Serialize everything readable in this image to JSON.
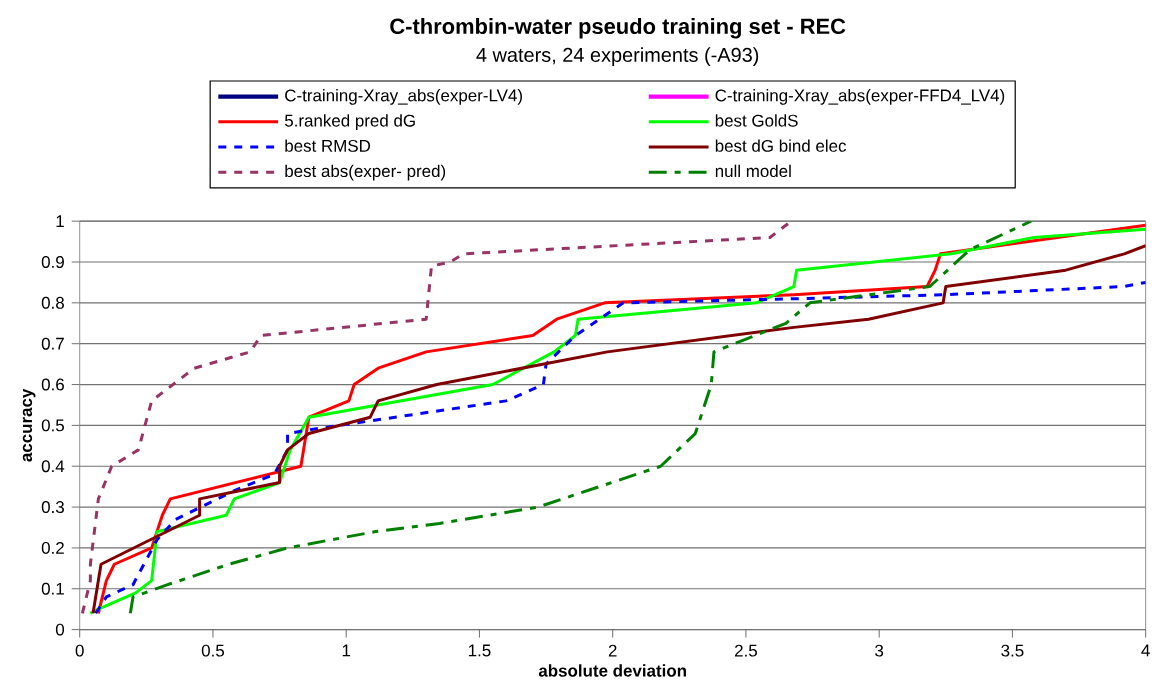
{
  "chart_data": {
    "type": "line",
    "title": "C-thrombin-water pseudo training set - REC",
    "subtitle": "4 waters, 24 experiments (-A93)",
    "xlabel": "absolute deviation",
    "ylabel": "accuracy",
    "xlim": [
      0,
      4
    ],
    "ylim": [
      0,
      1
    ],
    "xticks": [
      0,
      0.5,
      1,
      1.5,
      2,
      2.5,
      3,
      3.5,
      4
    ],
    "yticks": [
      0,
      0.1,
      0.2,
      0.3,
      0.4,
      0.5,
      0.6,
      0.7,
      0.8,
      0.9,
      1
    ],
    "grid": "y",
    "legend": "top",
    "line_style": "solid",
    "series": [
      {
        "name": "C-training-Xray_abs(exper-LV4)",
        "color": "#000080"
      },
      {
        "name": "C-training-Xray_abs(exper-FFD4_LV4)",
        "color": "#ff00ff"
      },
      {
        "name": "5.ranked pred dG",
        "color": "#ff0000",
        "x": [
          0.07,
          0.1,
          0.13,
          0.27,
          0.31,
          0.34,
          0.83,
          0.86,
          1.01,
          1.03,
          1.12,
          1.3,
          1.7,
          1.79,
          1.97,
          2.68,
          3.18,
          3.21,
          3.23,
          4
        ],
        "values": [
          0.04,
          0.12,
          0.16,
          0.2,
          0.28,
          0.32,
          0.4,
          0.52,
          0.56,
          0.6,
          0.64,
          0.68,
          0.72,
          0.76,
          0.8,
          0.82,
          0.84,
          0.88,
          0.92,
          0.99
        ]
      },
      {
        "name": "best GoldS",
        "color": "#00ff00",
        "x": [
          0.04,
          0.07,
          0.21,
          0.27,
          0.29,
          0.55,
          0.58,
          0.75,
          0.79,
          0.86,
          1.55,
          1.78,
          1.86,
          1.87,
          2.54,
          2.68,
          2.69,
          3.27,
          3.58,
          4
        ],
        "values": [
          0.04,
          0.05,
          0.09,
          0.12,
          0.24,
          0.28,
          0.32,
          0.36,
          0.44,
          0.52,
          0.6,
          0.68,
          0.72,
          0.76,
          0.8,
          0.84,
          0.88,
          0.92,
          0.96,
          0.98
        ]
      },
      {
        "name": "best RMSD",
        "color": "#0000ff",
        "line_style": "dotted",
        "x": [
          0.06,
          0.1,
          0.2,
          0.29,
          0.36,
          0.58,
          0.73,
          0.78,
          0.78,
          0.87,
          1.08,
          1.6,
          1.74,
          1.75,
          1.86,
          2.04,
          2.68,
          3.25,
          3.92,
          4
        ],
        "values": [
          0.04,
          0.08,
          0.11,
          0.22,
          0.27,
          0.34,
          0.38,
          0.44,
          0.48,
          0.49,
          0.51,
          0.56,
          0.6,
          0.65,
          0.72,
          0.8,
          0.81,
          0.82,
          0.84,
          0.85
        ]
      },
      {
        "name": "best dG bind elec",
        "color": "#800000",
        "x": [
          0.05,
          0.07,
          0.08,
          0.45,
          0.45,
          0.75,
          0.75,
          0.78,
          0.86,
          1.09,
          1.12,
          1.34,
          1.98,
          2.68,
          2.96,
          3.24,
          3.25,
          3.7,
          3.92,
          4
        ],
        "values": [
          0.04,
          0.12,
          0.16,
          0.28,
          0.32,
          0.36,
          0.4,
          0.44,
          0.48,
          0.52,
          0.56,
          0.6,
          0.68,
          0.74,
          0.76,
          0.8,
          0.84,
          0.88,
          0.92,
          0.94
        ]
      },
      {
        "name": "best abs(exper- pred)",
        "color": "#993366",
        "line_style": "dotted",
        "x": [
          0.01,
          0.04,
          0.04,
          0.07,
          0.12,
          0.22,
          0.27,
          0.43,
          0.64,
          0.68,
          1.3,
          1.32,
          1.39,
          1.44,
          2.59,
          2.67
        ],
        "values": [
          0.04,
          0.12,
          0.16,
          0.32,
          0.4,
          0.44,
          0.56,
          0.64,
          0.68,
          0.72,
          0.76,
          0.89,
          0.9,
          0.92,
          0.96,
          1
        ]
      },
      {
        "name": "null model",
        "color": "#008000",
        "line_style": "dashed",
        "x": [
          0.19,
          0.2,
          0.33,
          0.56,
          0.78,
          1.11,
          1.35,
          1.72,
          2.18,
          2.31,
          2.37,
          2.38,
          2.65,
          2.74,
          3.19,
          3.34,
          3.57
        ],
        "values": [
          0.04,
          0.08,
          0.11,
          0.16,
          0.2,
          0.24,
          0.26,
          0.3,
          0.4,
          0.48,
          0.6,
          0.68,
          0.75,
          0.8,
          0.84,
          0.93,
          1
        ]
      }
    ]
  }
}
